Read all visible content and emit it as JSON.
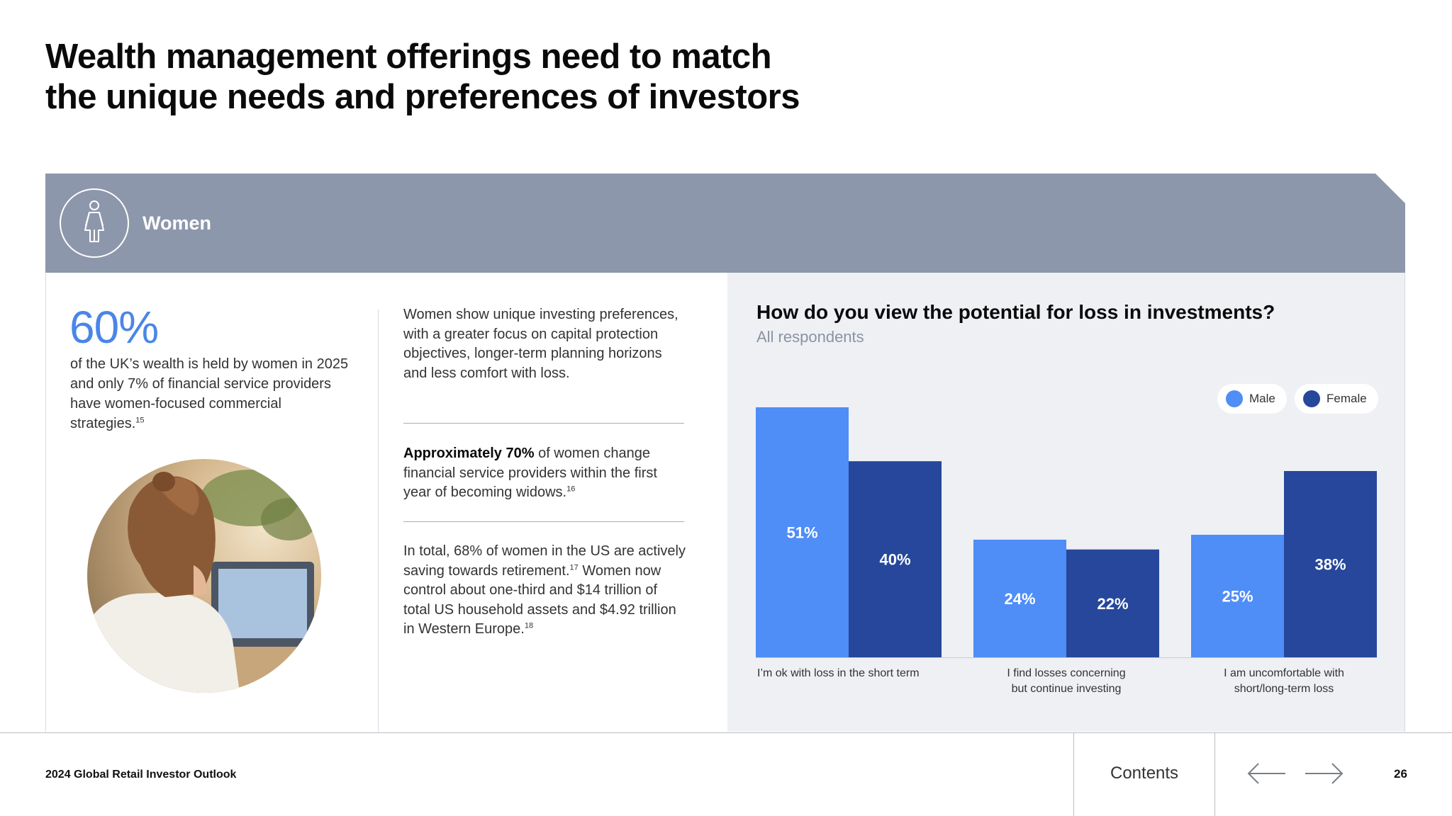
{
  "page": {
    "title_line1": "Wealth management offerings need to match",
    "title_line2": "the unique needs and preferences of investors"
  },
  "banner": {
    "label": "Women",
    "icon": "woman-icon",
    "color": "#8d97ab"
  },
  "left_panel": {
    "stat_value": "60%",
    "stat_text": "of the UK’s wealth is held by women in 2025 and only 7% of financial service providers have women-focused commercial strategies.",
    "stat_footnote": "15",
    "photo": "woman-at-laptop-photo"
  },
  "middle_panel": {
    "p1": "Women show unique investing preferences, with a greater focus on capital protection objectives, longer-term planning horizons and less comfort with loss.",
    "p2_bold": "Approximately 70%",
    "p2_rest": " of women change financial service providers within the first year of becoming widows.",
    "p2_footnote": "16",
    "p3_a": "In total, 68% of women in the US are actively saving towards retirement.",
    "p3_footnote1": "17",
    "p3_b": " Women now control about one-third and $14 trillion of total US household assets and $4.92 trillion in Western Europe.",
    "p3_footnote2": "18"
  },
  "chart_data": {
    "type": "bar",
    "title": "How do you view the potential for loss in investments?",
    "subtitle": "All respondents",
    "categories": [
      [
        "I’m ok with loss in the short term"
      ],
      [
        "I find losses concerning",
        "but continue investing"
      ],
      [
        "I am uncomfortable with",
        "short/long-term loss"
      ]
    ],
    "series": [
      {
        "name": "Male",
        "color": "#4f8df7",
        "values": [
          51,
          24,
          25
        ]
      },
      {
        "name": "Female",
        "color": "#26479b",
        "values": [
          40,
          22,
          38
        ]
      }
    ],
    "value_suffix": "%",
    "ylim": [
      0,
      51
    ],
    "grid": false,
    "legend_position": "top-right"
  },
  "footer": {
    "report_title": "2024 Global Retail Investor Outlook",
    "contents_label": "Contents",
    "page_number": "26"
  }
}
